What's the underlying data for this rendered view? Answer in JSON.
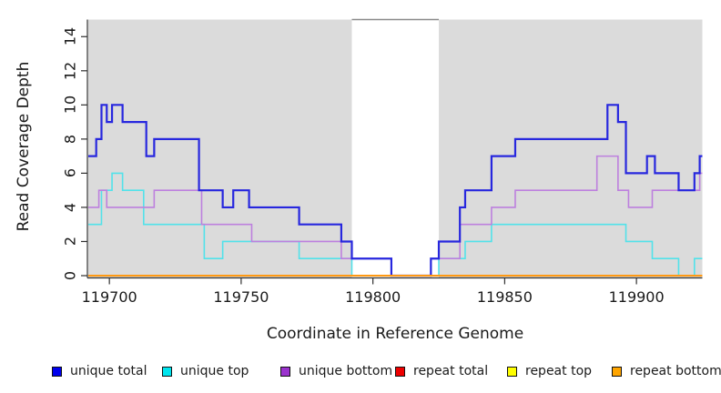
{
  "chart_data": {
    "type": "line",
    "subtype": "step",
    "title": "",
    "xlabel": "Coordinate in Reference Genome",
    "ylabel": "Read Coverage Depth",
    "xlim": [
      119692,
      119925
    ],
    "ylim": [
      0,
      15
    ],
    "xticks": [
      119700,
      119750,
      119800,
      119850,
      119900
    ],
    "yticks": [
      0,
      2,
      4,
      6,
      8,
      10,
      12,
      14
    ],
    "grid": false,
    "legend_position": "bottom-horizontal",
    "plot_bg": "#dbdbdb",
    "highlight_region": {
      "x0": 119792,
      "x1": 119825,
      "color": "#ffffff"
    },
    "series": [
      {
        "name": "unique total",
        "legend_color": "#0000ee",
        "line_color": "#2727de",
        "line_width": 2.2,
        "points": [
          [
            119692,
            7
          ],
          [
            119695,
            8
          ],
          [
            119697,
            10
          ],
          [
            119699,
            9
          ],
          [
            119701,
            10
          ],
          [
            119705,
            9
          ],
          [
            119714,
            7
          ],
          [
            119717,
            8
          ],
          [
            119734,
            5
          ],
          [
            119743,
            4
          ],
          [
            119747,
            5
          ],
          [
            119753,
            4
          ],
          [
            119772,
            3
          ],
          [
            119788,
            2
          ],
          [
            119792,
            1
          ],
          [
            119807,
            0
          ],
          [
            119822,
            1
          ],
          [
            119825,
            2
          ],
          [
            119833,
            4
          ],
          [
            119835,
            5
          ],
          [
            119845,
            7
          ],
          [
            119854,
            8
          ],
          [
            119889,
            10
          ],
          [
            119893,
            9
          ],
          [
            119896,
            6
          ],
          [
            119904,
            7
          ],
          [
            119907,
            6
          ],
          [
            119916,
            5
          ],
          [
            119922,
            6
          ],
          [
            119924,
            7
          ]
        ]
      },
      {
        "name": "unique top",
        "legend_color": "#00e5ee",
        "line_color": "#52e2ea",
        "line_width": 1.6,
        "points": [
          [
            119692,
            3
          ],
          [
            119697,
            5
          ],
          [
            119701,
            6
          ],
          [
            119705,
            5
          ],
          [
            119713,
            3
          ],
          [
            119736,
            1
          ],
          [
            119743,
            2
          ],
          [
            119772,
            1
          ],
          [
            119792,
            0
          ],
          [
            119825,
            1
          ],
          [
            119835,
            2
          ],
          [
            119845,
            3
          ],
          [
            119896,
            2
          ],
          [
            119906,
            1
          ],
          [
            119916,
            0
          ],
          [
            119922,
            1
          ]
        ]
      },
      {
        "name": "unique bottom",
        "legend_color": "#9a32cd",
        "line_color": "#bd80de",
        "line_width": 1.6,
        "points": [
          [
            119692,
            4
          ],
          [
            119696,
            5
          ],
          [
            119699,
            4
          ],
          [
            119717,
            5
          ],
          [
            119735,
            3
          ],
          [
            119754,
            2
          ],
          [
            119788,
            1
          ],
          [
            119807,
            0
          ],
          [
            119822,
            1
          ],
          [
            119833,
            3
          ],
          [
            119845,
            4
          ],
          [
            119854,
            5
          ],
          [
            119885,
            7
          ],
          [
            119893,
            5
          ],
          [
            119897,
            4
          ],
          [
            119906,
            5
          ],
          [
            119924,
            6
          ]
        ]
      },
      {
        "name": "repeat total",
        "legend_color": "#ee0000",
        "line_color": "#ee0000",
        "line_width": 1.6,
        "points": [
          [
            119692,
            0
          ]
        ]
      },
      {
        "name": "repeat top",
        "legend_color": "#ffff00",
        "line_color": "#ffff00",
        "line_width": 1.6,
        "points": [
          [
            119692,
            0
          ]
        ]
      },
      {
        "name": "repeat bottom",
        "legend_color": "#ffa500",
        "line_color": "#ff9912",
        "line_width": 2,
        "points": [
          [
            119692,
            0
          ]
        ]
      }
    ]
  }
}
